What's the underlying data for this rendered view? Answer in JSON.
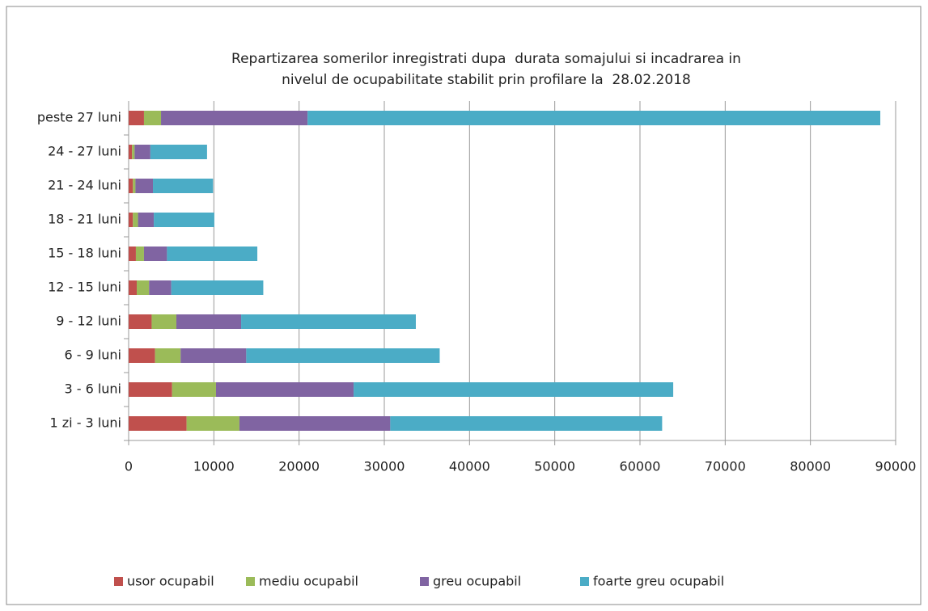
{
  "chart_data": {
    "type": "stacked_barh",
    "title": [
      "Repartizarea somerilor inregistrati dupa  durata somajului si incadrarea in",
      "nivelul de ocupabilitate stabilit prin profilare la  28.02.2018"
    ],
    "categories": [
      "1 zi - 3 luni",
      "3 - 6 luni",
      "6 - 9 luni",
      "9 - 12 luni",
      "12 - 15 luni",
      "15 - 18 luni",
      "18 - 21 luni",
      "21 - 24 luni",
      "24 - 27 luni",
      "peste 27 luni"
    ],
    "series": [
      {
        "name": "usor ocupabil",
        "color": "#c0504d",
        "values": [
          6800,
          5100,
          3100,
          2700,
          950,
          850,
          500,
          500,
          400,
          1800
        ]
      },
      {
        "name": "mediu ocupabil",
        "color": "#9bbb59",
        "values": [
          6200,
          5150,
          3000,
          2900,
          1450,
          950,
          600,
          300,
          300,
          2000
        ]
      },
      {
        "name": "greu ocupabil",
        "color": "#8064a2",
        "values": [
          17700,
          16150,
          7700,
          7600,
          2600,
          2700,
          1850,
          2050,
          1850,
          17200
        ]
      },
      {
        "name": "foarte greu ocupabil",
        "color": "#4bacc6",
        "values": [
          31900,
          37500,
          22700,
          20500,
          10800,
          10600,
          7100,
          7050,
          6650,
          67200
        ]
      }
    ],
    "xlim": [
      0,
      90000
    ],
    "xticks": [
      0,
      10000,
      20000,
      30000,
      40000,
      50000,
      60000,
      70000,
      80000,
      90000
    ],
    "grid": true,
    "legend": "bottom"
  }
}
